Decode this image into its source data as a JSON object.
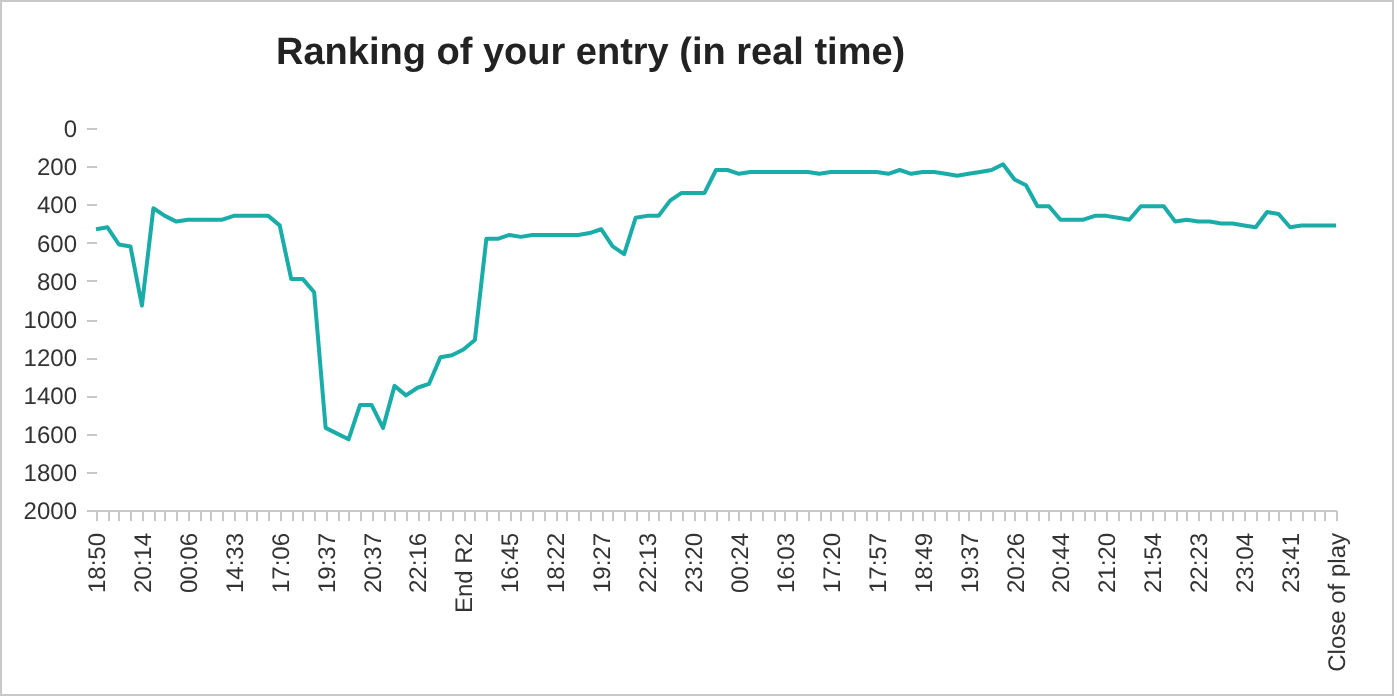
{
  "chart_data": {
    "type": "line",
    "title": "Ranking of your entry (in real time)",
    "categories": [
      "18:50",
      null,
      null,
      null,
      "20:14",
      null,
      null,
      null,
      "00:06",
      null,
      null,
      null,
      "14:33",
      null,
      null,
      null,
      "17:06",
      null,
      null,
      null,
      "19:37",
      null,
      null,
      null,
      "20:37",
      null,
      null,
      null,
      "22:16",
      null,
      null,
      null,
      "End R2",
      null,
      null,
      null,
      "16:45",
      null,
      null,
      null,
      "18:22",
      null,
      null,
      null,
      "19:27",
      null,
      null,
      null,
      "22:13",
      null,
      null,
      null,
      "23:20",
      null,
      null,
      null,
      "00:24",
      null,
      null,
      null,
      "16:03",
      null,
      null,
      null,
      "17:20",
      null,
      null,
      null,
      "17:57",
      null,
      null,
      null,
      "18:49",
      null,
      null,
      null,
      "19:37",
      null,
      null,
      null,
      "20:26",
      null,
      null,
      null,
      "20:44",
      null,
      null,
      null,
      "21:20",
      null,
      null,
      null,
      "21:54",
      null,
      null,
      null,
      "22:23",
      null,
      null,
      null,
      "23:04",
      null,
      null,
      null,
      "23:41",
      null,
      null,
      null,
      "Close of play"
    ],
    "series": [
      {
        "color": "#1aaca8",
        "values": [
          530,
          520,
          610,
          620,
          930,
          420,
          460,
          490,
          480,
          480,
          480,
          480,
          460,
          460,
          460,
          460,
          510,
          790,
          790,
          860,
          1570,
          1600,
          1630,
          1450,
          1450,
          1570,
          1350,
          1400,
          1360,
          1340,
          1200,
          1190,
          1160,
          1110,
          580,
          580,
          560,
          570,
          560,
          560,
          560,
          560,
          560,
          550,
          530,
          620,
          660,
          470,
          460,
          460,
          380,
          340,
          340,
          340,
          220,
          220,
          240,
          230,
          230,
          230,
          230,
          230,
          230,
          240,
          230,
          230,
          230,
          230,
          230,
          240,
          220,
          240,
          230,
          230,
          240,
          250,
          240,
          230,
          220,
          190,
          270,
          300,
          410,
          410,
          480,
          480,
          480,
          460,
          460,
          470,
          480,
          410,
          410,
          410,
          490,
          480,
          490,
          490,
          500,
          500,
          510,
          520,
          440,
          450,
          520,
          510,
          510,
          510,
          510
        ]
      }
    ],
    "ylim": [
      2000,
      0
    ],
    "yticks": [
      0,
      200,
      400,
      600,
      800,
      1000,
      1200,
      1400,
      1600,
      1800,
      2000
    ],
    "grid": false,
    "marker": "none",
    "line_style": "solid"
  }
}
